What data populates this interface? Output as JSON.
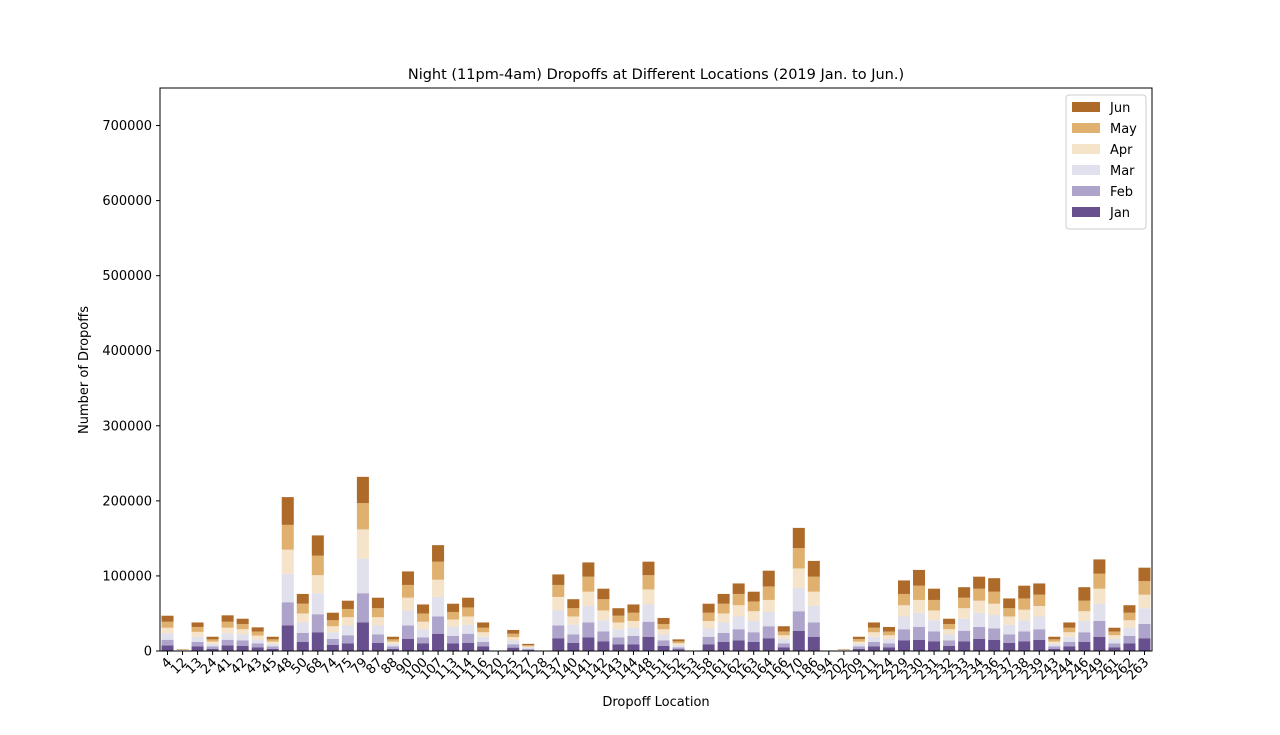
{
  "chart_data": {
    "type": "bar",
    "stacked": true,
    "title": "Night (11pm-4am) Dropoffs at Different Locations (2019 Jan. to Jun.)",
    "xlabel": "Dropoff Location",
    "ylabel": "Number of Dropoffs",
    "ylim": [
      0,
      750000
    ],
    "yticks": [
      0,
      100000,
      200000,
      300000,
      400000,
      500000,
      600000,
      700000
    ],
    "legend_position": "upper right",
    "grid": false,
    "categories": [
      "4",
      "12",
      "13",
      "24",
      "41",
      "42",
      "43",
      "45",
      "48",
      "50",
      "68",
      "74",
      "75",
      "79",
      "87",
      "88",
      "90",
      "100",
      "107",
      "113",
      "114",
      "116",
      "120",
      "125",
      "127",
      "128",
      "137",
      "140",
      "141",
      "142",
      "143",
      "144",
      "148",
      "151",
      "152",
      "153",
      "158",
      "161",
      "162",
      "163",
      "164",
      "166",
      "170",
      "186",
      "194",
      "202",
      "209",
      "211",
      "224",
      "229",
      "230",
      "231",
      "232",
      "233",
      "234",
      "236",
      "237",
      "238",
      "239",
      "243",
      "244",
      "246",
      "249",
      "261",
      "262",
      "263"
    ],
    "series": [
      {
        "name": "Jan",
        "color": "#684f8e",
        "values": [
          7500,
          400,
          6000,
          3000,
          7500,
          7000,
          5000,
          3000,
          34000,
          12000,
          25000,
          8000,
          10000,
          38000,
          11000,
          3000,
          16000,
          10000,
          23000,
          10000,
          11000,
          6000,
          100,
          4500,
          1500,
          100,
          17000,
          11000,
          18000,
          13000,
          9000,
          9000,
          19000,
          7000,
          2500,
          100,
          9000,
          12000,
          14000,
          12000,
          17000,
          5000,
          27000,
          19000,
          100,
          400,
          3000,
          6000,
          5000,
          14000,
          15000,
          13000,
          7000,
          13000,
          16000,
          15000,
          11000,
          13000,
          15000,
          3000,
          6000,
          12000,
          19000,
          5000,
          10000,
          17000
        ]
      },
      {
        "name": "Feb",
        "color": "#ada3cb",
        "values": [
          7500,
          400,
          6000,
          3000,
          7500,
          7000,
          5000,
          3000,
          31000,
          12000,
          24000,
          8000,
          11000,
          39000,
          11000,
          3000,
          18000,
          8000,
          23000,
          10000,
          12000,
          6000,
          100,
          4500,
          1500,
          100,
          17000,
          11000,
          20000,
          13000,
          9000,
          11000,
          20000,
          7000,
          2500,
          100,
          10000,
          12000,
          15000,
          13000,
          16000,
          5000,
          26000,
          19000,
          100,
          400,
          3000,
          6000,
          5000,
          15000,
          17000,
          13000,
          7000,
          14000,
          16000,
          15000,
          11000,
          13000,
          14000,
          3000,
          6000,
          13000,
          21000,
          5000,
          10000,
          19000
        ]
      },
      {
        "name": "Mar",
        "color": "#e1e0ed",
        "values": [
          8500,
          400,
          7000,
          3500,
          8500,
          8000,
          5500,
          3500,
          38000,
          14000,
          28000,
          9000,
          13000,
          46000,
          12000,
          3500,
          20000,
          11000,
          26000,
          12000,
          12000,
          7000,
          100,
          5000,
          1700,
          100,
          20000,
          13000,
          22000,
          15000,
          11000,
          11000,
          23000,
          8000,
          2800,
          100,
          11000,
          14000,
          17000,
          15000,
          19000,
          6000,
          31000,
          22000,
          100,
          400,
          3500,
          7000,
          6000,
          17000,
          19000,
          15000,
          8000,
          16000,
          19000,
          18000,
          13000,
          15000,
          17000,
          3500,
          7000,
          15000,
          23000,
          6000,
          11000,
          21000
        ]
      },
      {
        "name": "Apr",
        "color": "#f5e4c9",
        "values": [
          7500,
          400,
          6500,
          3000,
          7500,
          7000,
          5000,
          3000,
          32000,
          12000,
          24000,
          8000,
          11000,
          39000,
          11000,
          3000,
          17000,
          10000,
          23000,
          10000,
          11000,
          6000,
          100,
          4500,
          1500,
          100,
          18000,
          11000,
          19000,
          13000,
          9000,
          9000,
          20000,
          7000,
          2500,
          100,
          10000,
          12000,
          15000,
          13000,
          16000,
          5000,
          26000,
          19000,
          100,
          400,
          3000,
          6000,
          5000,
          15000,
          17000,
          13000,
          7000,
          14000,
          16000,
          15000,
          11000,
          14000,
          14000,
          3000,
          6000,
          13000,
          20000,
          5000,
          10000,
          18000
        ]
      },
      {
        "name": "May",
        "color": "#e0b06f",
        "values": [
          8000,
          400,
          6500,
          3000,
          8000,
          7000,
          5500,
          3000,
          33000,
          13000,
          26000,
          8000,
          11000,
          35000,
          12000,
          3000,
          17000,
          11000,
          24000,
          10000,
          12000,
          6000,
          100,
          4500,
          1500,
          100,
          16000,
          11000,
          20000,
          15000,
          9000,
          11000,
          19000,
          7000,
          2500,
          100,
          11000,
          13000,
          15000,
          13000,
          18000,
          5000,
          27000,
          20000,
          100,
          400,
          3500,
          6000,
          5000,
          15000,
          19000,
          14000,
          7000,
          14000,
          16000,
          16000,
          11000,
          15000,
          15000,
          3000,
          6000,
          14000,
          20000,
          5000,
          10000,
          18000
        ]
      },
      {
        "name": "Jun",
        "color": "#ad6a28",
        "values": [
          8000,
          400,
          6000,
          3500,
          8500,
          7000,
          5500,
          3500,
          37000,
          13000,
          27000,
          10000,
          11000,
          35000,
          14000,
          3500,
          18000,
          12000,
          22000,
          11000,
          13000,
          7000,
          100,
          5000,
          1800,
          100,
          14000,
          12000,
          19000,
          14000,
          10000,
          11000,
          18000,
          8000,
          2700,
          100,
          12000,
          13000,
          14000,
          13000,
          21000,
          7000,
          27000,
          21000,
          100,
          400,
          3000,
          7000,
          6000,
          18000,
          21000,
          15000,
          7000,
          14000,
          16000,
          18000,
          13000,
          17000,
          15000,
          3500,
          7000,
          18000,
          19000,
          5000,
          10000,
          18000
        ]
      }
    ]
  }
}
